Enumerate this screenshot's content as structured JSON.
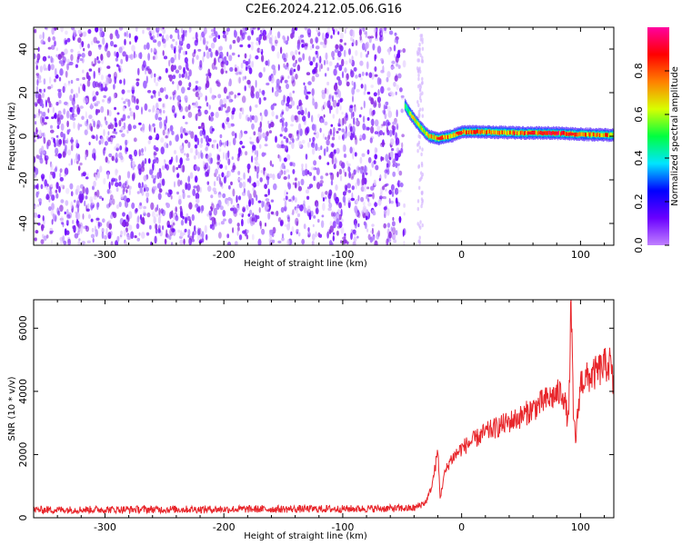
{
  "title": "C2E6.2024.212.05.06.G16",
  "chart_data": [
    {
      "type": "heatmap",
      "xlabel": "Height of straight line (km)",
      "ylabel": "Frequency (Hz)",
      "xlim": [
        -360,
        128
      ],
      "ylim": [
        -50,
        50
      ],
      "xticks": [
        -300,
        -200,
        -100,
        0,
        100
      ],
      "yticks": [
        -40,
        -20,
        0,
        20,
        40
      ],
      "colorbar": {
        "label": "Normalized spectral amplitude",
        "range": [
          0,
          1
        ],
        "ticks": [
          "0.0",
          "0.2",
          "0.4",
          "0.6",
          "0.8"
        ],
        "colors": [
          "#c080ff",
          "#6a00ff",
          "#0000ff",
          "#00e5ff",
          "#00ff40",
          "#d8ff00",
          "#ff8000",
          "#ff0000",
          "#ff00a0"
        ]
      },
      "noise_region": {
        "x": [
          -360,
          -48
        ],
        "amplitude": 0.12
      },
      "trace": [
        {
          "x": -48,
          "y": 14,
          "amplitude": 0.55
        },
        {
          "x": -42,
          "y": 9,
          "amplitude": 0.6
        },
        {
          "x": -35,
          "y": 4,
          "amplitude": 0.65
        },
        {
          "x": -28,
          "y": 0,
          "amplitude": 0.7
        },
        {
          "x": -20,
          "y": -1,
          "amplitude": 0.75
        },
        {
          "x": -10,
          "y": 0,
          "amplitude": 0.8
        },
        {
          "x": 0,
          "y": 2,
          "amplitude": 0.8
        },
        {
          "x": 20,
          "y": 2,
          "amplitude": 0.78
        },
        {
          "x": 50,
          "y": 1.5,
          "amplitude": 0.8
        },
        {
          "x": 75,
          "y": 1.5,
          "amplitude": 0.9
        },
        {
          "x": 95,
          "y": 1,
          "amplitude": 0.8
        },
        {
          "x": 128,
          "y": 0.5,
          "amplitude": 0.75
        }
      ]
    },
    {
      "type": "line",
      "xlabel": "Height of straight line (km)",
      "ylabel": "SNR (10 * v/v)",
      "xlim": [
        -360,
        128
      ],
      "ylim": [
        0,
        6900
      ],
      "xticks": [
        -300,
        -200,
        -100,
        0,
        100
      ],
      "yticks": [
        0,
        2000,
        4000,
        6000
      ],
      "color": "#e8262b",
      "x": [
        -360,
        -300,
        -200,
        -100,
        -40,
        -30,
        -25,
        -20,
        -18,
        -15,
        -10,
        0,
        20,
        50,
        70,
        85,
        90,
        92,
        94,
        96,
        100,
        110,
        120,
        125,
        128
      ],
      "y": [
        250,
        260,
        270,
        280,
        300,
        500,
        1000,
        2100,
        600,
        1300,
        1800,
        2200,
        2700,
        3200,
        3700,
        4000,
        3000,
        6900,
        3200,
        2500,
        4300,
        4500,
        4800,
        4900,
        4000
      ]
    }
  ]
}
